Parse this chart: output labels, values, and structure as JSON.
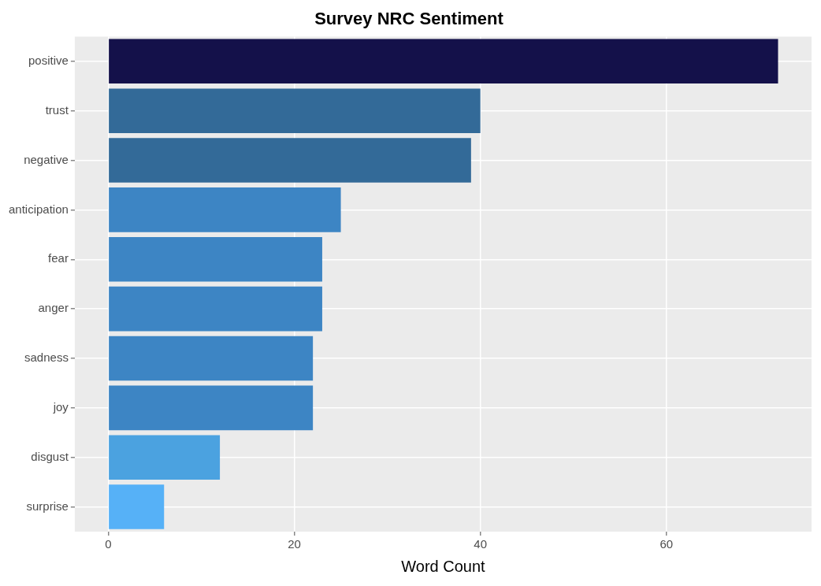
{
  "chart_data": {
    "type": "bar",
    "orientation": "horizontal",
    "title": "Survey NRC Sentiment",
    "xlabel": "Word Count",
    "categories": [
      "positive",
      "trust",
      "negative",
      "anticipation",
      "fear",
      "anger",
      "sadness",
      "joy",
      "disgust",
      "surprise"
    ],
    "values": [
      72,
      40,
      39,
      25,
      23,
      23,
      22,
      22,
      12,
      6
    ],
    "colors": [
      "#14114a",
      "#336a98",
      "#336a98",
      "#3d85c4",
      "#3d85c4",
      "#3d85c4",
      "#3d85c4",
      "#3d85c4",
      "#4ba2e0",
      "#56b1f7"
    ],
    "xlim": [
      -3.6,
      75.6
    ],
    "xticks": [
      0,
      20,
      40,
      60
    ],
    "grid": true,
    "legend": false
  }
}
